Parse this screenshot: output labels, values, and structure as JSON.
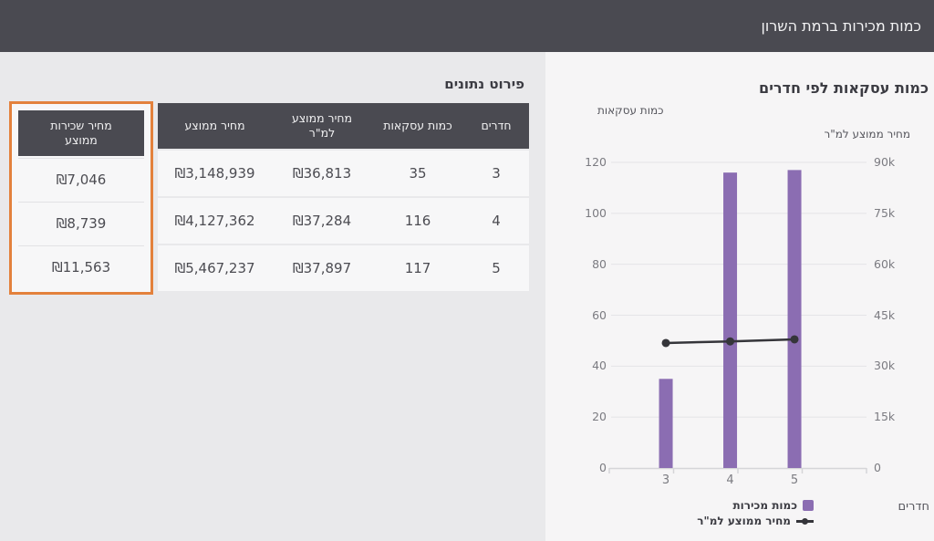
{
  "header": {
    "title": "כמות מכירות ברמת השרון"
  },
  "colors": {
    "header_bg": "#4a4a51",
    "accent_orange": "#e3813c",
    "bar_purple": "#8b6db2",
    "line_dark": "#35353a",
    "panel_left_bg": "#e9e9eb",
    "panel_right_bg": "#f6f5f6"
  },
  "table_section": {
    "title": "פירוט נתונים",
    "rent_column": {
      "header": "מחיר שכירות ממוצע",
      "values": [
        "₪7,046",
        "₪8,739",
        "₪11,563"
      ]
    },
    "main_table": {
      "columns": [
        "חדרים",
        "כמות עסקאות",
        "מחיר ממוצע למ\"ר",
        "מחיר ממוצע"
      ],
      "rows": [
        [
          "3",
          "35",
          "₪36,813",
          "₪3,148,939"
        ],
        [
          "4",
          "116",
          "₪37,284",
          "₪4,127,362"
        ],
        [
          "5",
          "117",
          "₪37,897",
          "₪5,467,237"
        ]
      ]
    }
  },
  "chart_data": {
    "type": "bar",
    "title": "כמות עסקאות לפי חדרים",
    "categories": [
      "3",
      "4",
      "5"
    ],
    "series": [
      {
        "name": "כמות מכירות",
        "type": "bar",
        "axis": "left",
        "values": [
          35,
          116,
          117
        ]
      },
      {
        "name": "מחיר ממוצע למ\"ר",
        "type": "line",
        "axis": "right",
        "values": [
          36813,
          37284,
          37897
        ]
      }
    ],
    "left_axis": {
      "label": "כמות עסקאות",
      "ticks": [
        0,
        20,
        40,
        60,
        80,
        100,
        120
      ],
      "max": 120
    },
    "right_axis": {
      "label": "מחיר ממוצע למ\"ר",
      "tick_labels": [
        "0",
        "15k",
        "30k",
        "45k",
        "60k",
        "75k",
        "90k"
      ],
      "max": 90000
    },
    "xlabel": "חדרים",
    "grid": true,
    "legend_position": "bottom",
    "bar_color": "#8b6db2",
    "line_color": "#35353a"
  }
}
